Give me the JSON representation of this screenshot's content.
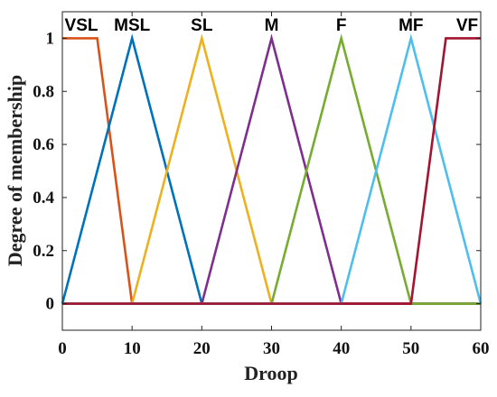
{
  "chart_data": {
    "type": "line",
    "title": "",
    "xlabel": "Droop",
    "ylabel": "Degree of membership",
    "xlim": [
      0,
      60
    ],
    "ylim": [
      -0.1,
      1.1
    ],
    "xticks": [
      "0",
      "10",
      "20",
      "30",
      "40",
      "50",
      "60"
    ],
    "yticks": [
      "0",
      "0.2",
      "0.4",
      "0.6",
      "0.8",
      "1"
    ],
    "grid": false,
    "series": [
      {
        "name": "VSL",
        "color": "#d95319",
        "x": [
          0,
          5,
          10,
          60
        ],
        "y": [
          1,
          1,
          0,
          0
        ]
      },
      {
        "name": "MSL",
        "color": "#0072bd",
        "x": [
          0,
          10,
          20,
          60
        ],
        "y": [
          0,
          1,
          0,
          0
        ]
      },
      {
        "name": "SL",
        "color": "#edb120",
        "x": [
          0,
          10,
          20,
          30,
          60
        ],
        "y": [
          0,
          0,
          1,
          0,
          0
        ]
      },
      {
        "name": "M",
        "color": "#7e2f8e",
        "x": [
          0,
          20,
          30,
          40,
          60
        ],
        "y": [
          0,
          0,
          1,
          0,
          0
        ]
      },
      {
        "name": "F",
        "color": "#77ac30",
        "x": [
          0,
          30,
          40,
          50,
          60
        ],
        "y": [
          0,
          0,
          1,
          0,
          0
        ]
      },
      {
        "name": "MF",
        "color": "#4dbeee",
        "x": [
          0,
          40,
          50,
          60
        ],
        "y": [
          0,
          0,
          1,
          0
        ]
      },
      {
        "name": "VF",
        "color": "#a2142f",
        "x": [
          0,
          50,
          55,
          60
        ],
        "y": [
          0,
          0,
          1,
          1
        ]
      }
    ]
  }
}
